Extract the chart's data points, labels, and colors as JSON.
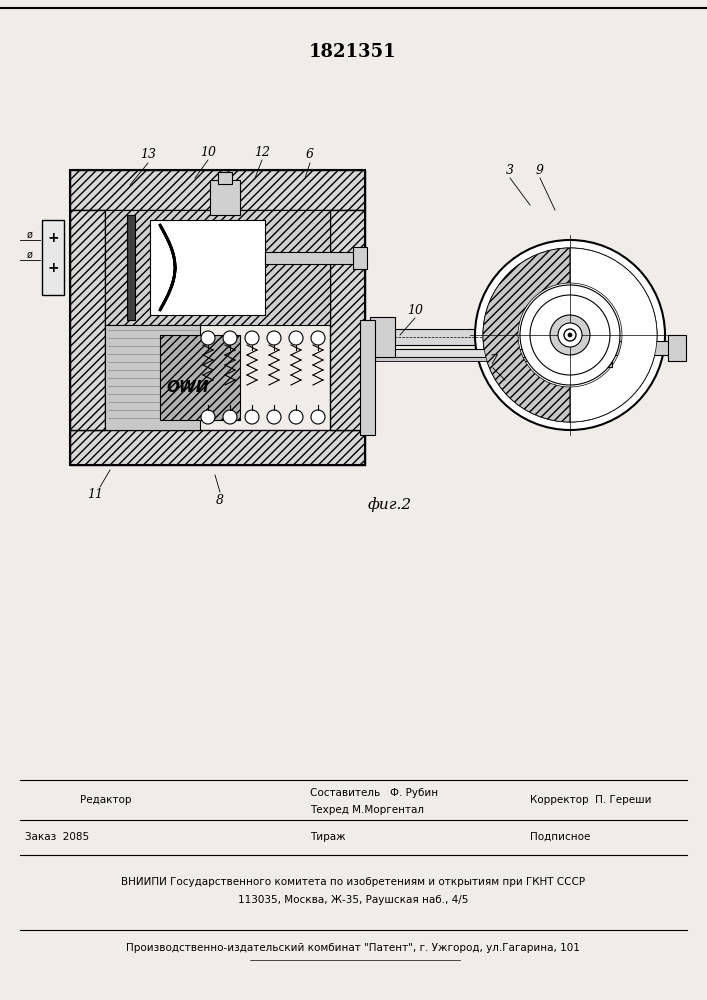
{
  "patent_number": "1821351",
  "bg_color": "#f0ede8",
  "footer": {
    "editor_label": "Редактор",
    "composer_line1": "Составитель   Ф. Рубин",
    "composer_line2": "Техред М.Моргентал",
    "corrector": "Корректор  П. Гереши",
    "order": "Заказ  2085",
    "tirazh": "Тираж",
    "podpisnoe": "Подписное",
    "vniiipi_line1": "ВНИИПИ Государственного комитета по изобретениям и открытиям при ГКНТ СССР",
    "vniiipi_line2": "113035, Москва, Ж-35, Раушская наб., 4/5",
    "publisher": "Производственно-издательский комбинат \"Патент\", г. Ужгород, ул.Гагарина, 101"
  },
  "fig_label": "фиг.2"
}
